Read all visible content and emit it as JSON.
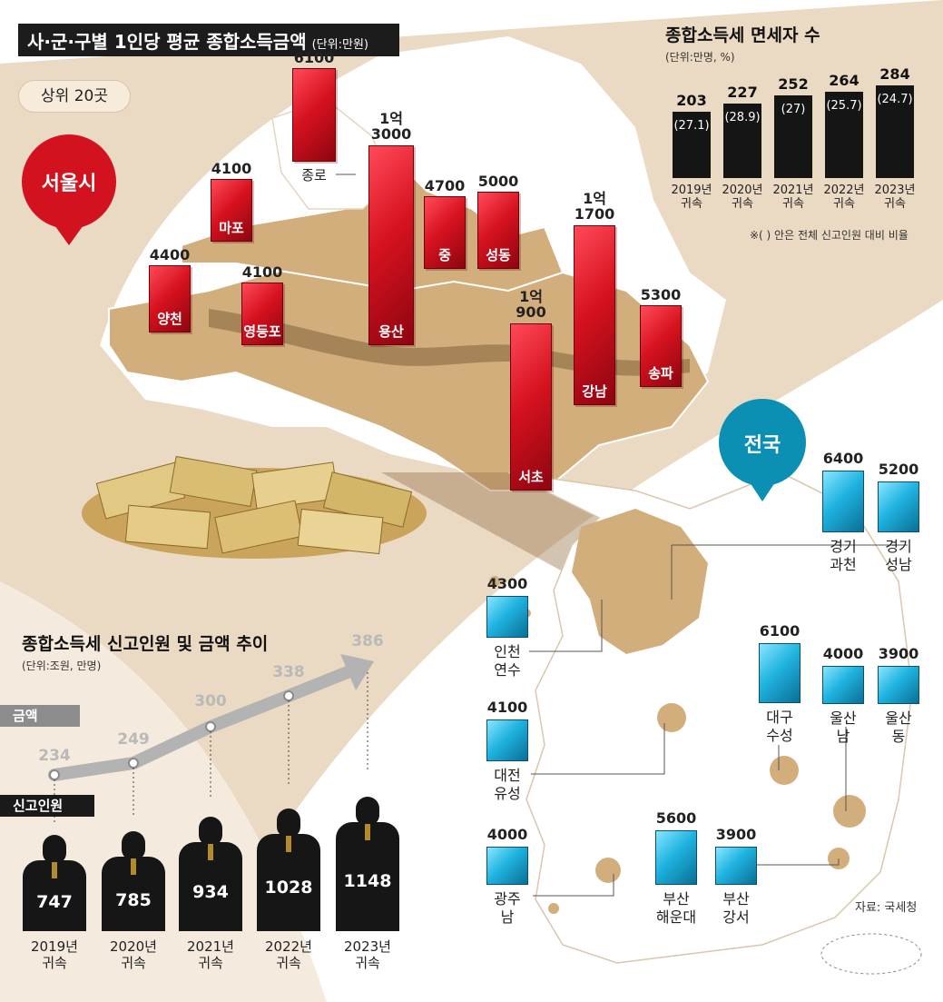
{
  "markers": {
    "seoul": "서울시",
    "nationwide": "전국"
  },
  "chart_data": [
    {
      "type": "bar",
      "title": "사·군·구별 1인당 평균 종합소득금액",
      "unit": "(단위:만원)",
      "subtitle": "상위 20곳",
      "source": "자료: 국세청",
      "seoul": {
        "categories": [
          "종로",
          "마포",
          "양천",
          "영등포",
          "용산",
          "중",
          "성동",
          "서초",
          "강남",
          "송파"
        ],
        "values": [
          6100,
          4100,
          4400,
          4100,
          13000,
          4700,
          5000,
          10900,
          11700,
          5300
        ],
        "value_labels": [
          [
            "6100"
          ],
          [
            "4100"
          ],
          [
            "4400"
          ],
          [
            "4100"
          ],
          [
            "1억",
            "3000"
          ],
          [
            "4700"
          ],
          [
            "5000"
          ],
          [
            "1억",
            "900"
          ],
          [
            "1억",
            "1700"
          ],
          [
            "5300"
          ]
        ]
      },
      "nationwide": {
        "categories": [
          [
            "경기",
            "과천"
          ],
          [
            "경기",
            "성남"
          ],
          [
            "인천",
            "연수"
          ],
          [
            "대구",
            "수성"
          ],
          [
            "울산",
            "남"
          ],
          [
            "울산",
            "동"
          ],
          [
            "대전",
            "유성"
          ],
          [
            "광주",
            "남"
          ],
          [
            "부산",
            "해운대"
          ],
          [
            "부산",
            "강서"
          ]
        ],
        "values": [
          6400,
          5200,
          4300,
          6100,
          4000,
          3900,
          4100,
          4000,
          5600,
          3900
        ]
      }
    },
    {
      "type": "bar",
      "title": "종합소득세 면세자 수",
      "unit": "(단위:만명, %)",
      "note": "※( ) 안은 전체 신고인원 대비 비율",
      "categories": [
        [
          "2019년",
          "귀속"
        ],
        [
          "2020년",
          "귀속"
        ],
        [
          "2021년",
          "귀속"
        ],
        [
          "2022년",
          "귀속"
        ],
        [
          "2023년",
          "귀속"
        ]
      ],
      "values": [
        203,
        227,
        252,
        264,
        284
      ],
      "ratios": [
        "(27.1)",
        "(28.9)",
        "(27)",
        "(25.7)",
        "(24.7)"
      ]
    },
    {
      "type": "line",
      "title": "종합소득세 신고인원 및 금액 추이",
      "unit": "(단위:조원, 만명)",
      "categories": [
        [
          "2019년",
          "귀속"
        ],
        [
          "2020년",
          "귀속"
        ],
        [
          "2021년",
          "귀속"
        ],
        [
          "2022년",
          "귀속"
        ],
        [
          "2023년",
          "귀속"
        ]
      ],
      "series": [
        {
          "name": "금액",
          "values": [
            234,
            249,
            300,
            338,
            386
          ]
        },
        {
          "name": "신고인원",
          "values": [
            747,
            785,
            934,
            1028,
            1148
          ]
        }
      ]
    }
  ]
}
